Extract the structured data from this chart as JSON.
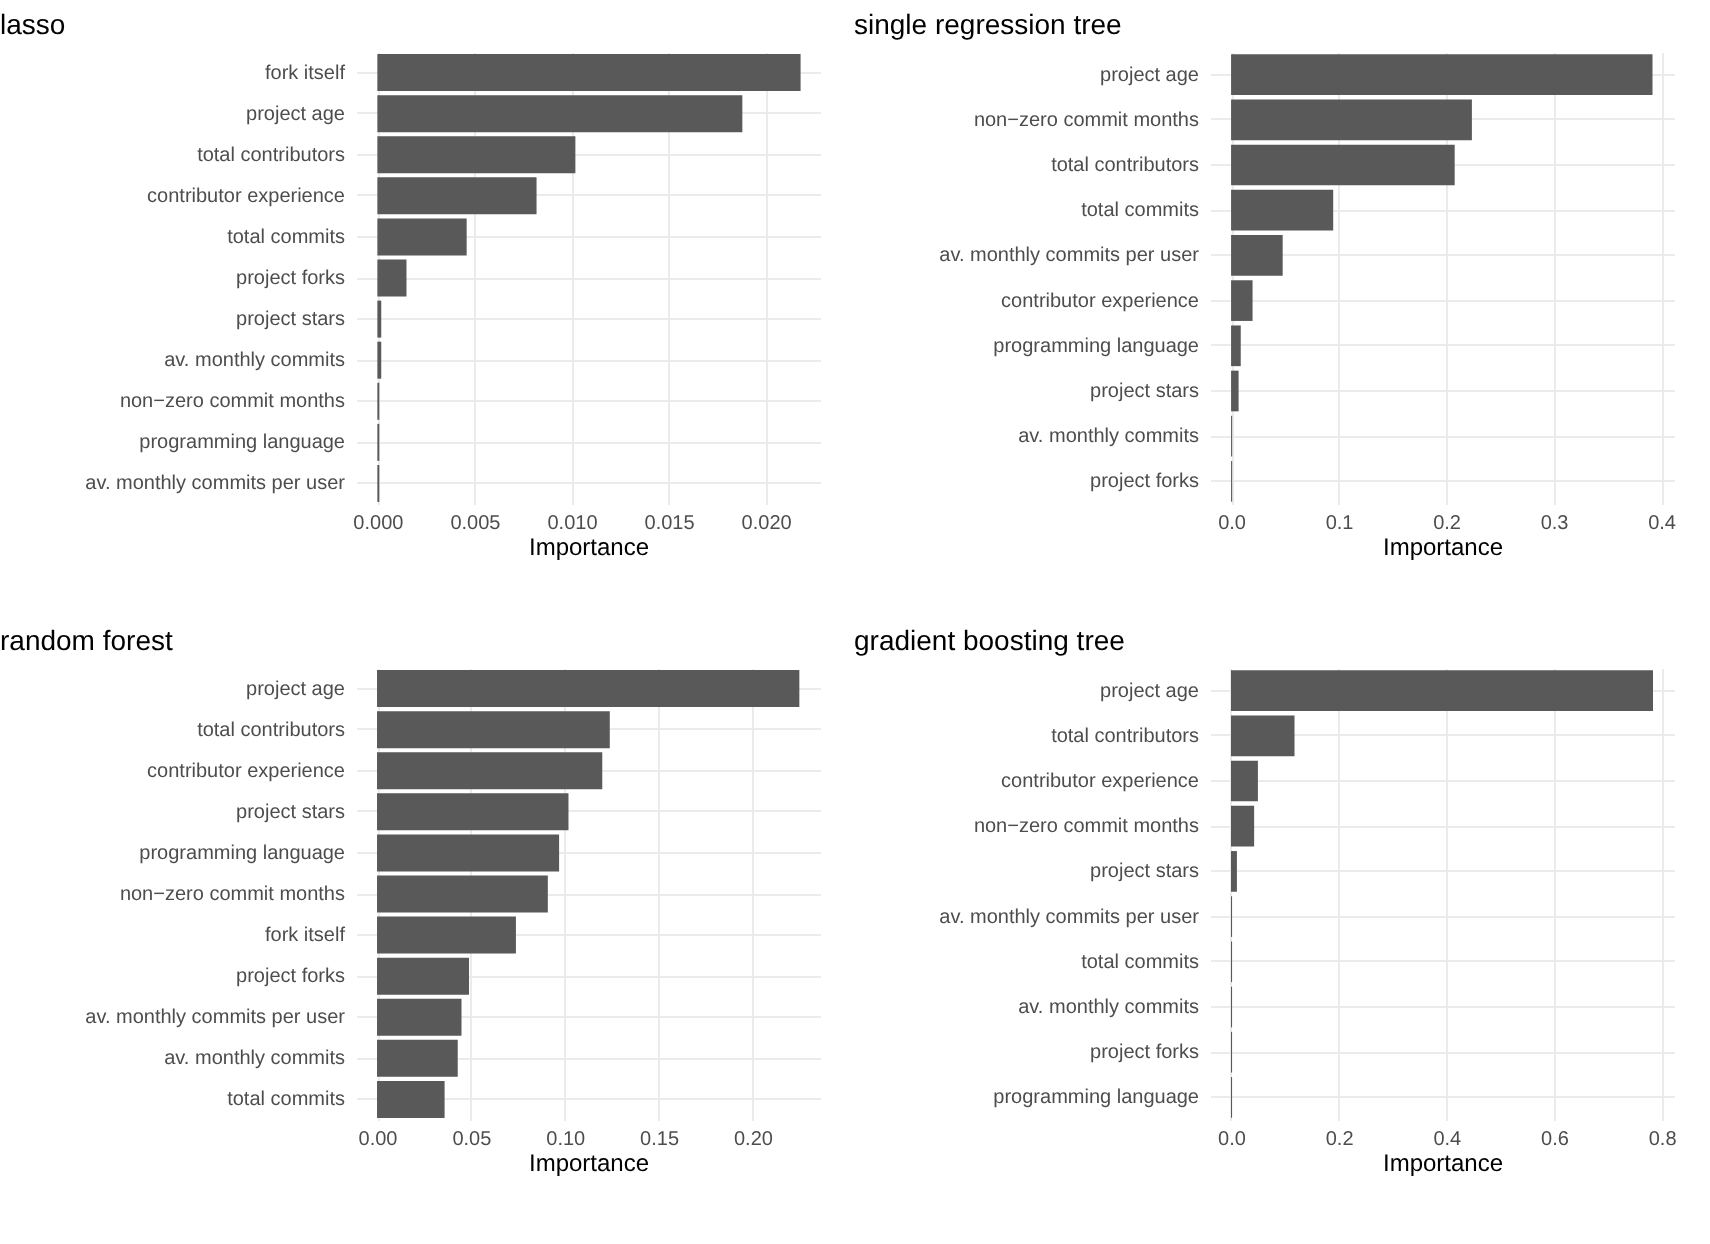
{
  "chart_data": [
    {
      "type": "bar",
      "orientation": "horizontal",
      "title": "lasso",
      "xlabel": "Importance",
      "color": "#595959",
      "grid": true,
      "categories": [
        "fork itself",
        "project age",
        "total contributors",
        "contributor experience",
        "total commits",
        "project forks",
        "project stars",
        "av. monthly commits",
        "non−zero commit months",
        "programming language",
        "av. monthly commits per user"
      ],
      "values": [
        0.0218,
        0.0188,
        0.0102,
        0.0082,
        0.0046,
        0.0015,
        0.0002,
        0.0002,
        0.0001,
        0.0001,
        0.0001
      ],
      "xlim": [
        -0.0011,
        0.0228
      ],
      "xticks": [
        {
          "value": 0,
          "label": "0.000"
        },
        0.005,
        {
          "value": 0.01,
          "label": "0.010"
        },
        0.015,
        {
          "value": 0.02,
          "label": "0.020"
        }
      ]
    },
    {
      "type": "bar",
      "orientation": "horizontal",
      "title": "single regression tree",
      "xlabel": "Importance",
      "color": "#595959",
      "grid": true,
      "categories": [
        "project age",
        "non−zero commit months",
        "total contributors",
        "total commits",
        "av. monthly commits per user",
        "contributor experience",
        "programming language",
        "project stars",
        "av. monthly commits",
        "project forks"
      ],
      "values": [
        0.392,
        0.224,
        0.208,
        0.095,
        0.048,
        0.02,
        0.009,
        0.007,
        0.001,
        0.001
      ],
      "xlim": [
        -0.0196,
        0.412
      ],
      "xticks": [
        {
          "value": 0,
          "label": "0.0"
        },
        0.1,
        0.2,
        0.3,
        0.4
      ]
    },
    {
      "type": "bar",
      "orientation": "horizontal",
      "title": "random forest",
      "xlabel": "Importance",
      "color": "#595959",
      "grid": true,
      "categories": [
        "project age",
        "total contributors",
        "contributor experience",
        "project stars",
        "programming language",
        "non−zero commit months",
        "fork itself",
        "project forks",
        "av. monthly commits per user",
        "av. monthly commits",
        "total commits"
      ],
      "values": [
        0.225,
        0.124,
        0.12,
        0.102,
        0.097,
        0.091,
        0.074,
        0.049,
        0.045,
        0.043,
        0.036
      ],
      "xlim": [
        -0.0112,
        0.236
      ],
      "xticks": [
        {
          "value": 0,
          "label": "0.00"
        },
        0.05,
        {
          "value": 0.1,
          "label": "0.10"
        },
        0.15,
        {
          "value": 0.2,
          "label": "0.20"
        }
      ]
    },
    {
      "type": "bar",
      "orientation": "horizontal",
      "title": "gradient boosting tree",
      "xlabel": "Importance",
      "color": "#595959",
      "grid": true,
      "categories": [
        "project age",
        "total contributors",
        "contributor experience",
        "non−zero commit months",
        "project stars",
        "av. monthly commits per user",
        "total commits",
        "av. monthly commits",
        "project forks",
        "programming language"
      ],
      "values": [
        0.784,
        0.118,
        0.05,
        0.043,
        0.011,
        0.002,
        0.002,
        0.002,
        0.002,
        0.002
      ],
      "xlim": [
        -0.039,
        0.823
      ],
      "xticks": [
        {
          "value": 0,
          "label": "0.0"
        },
        0.2,
        0.4,
        0.6,
        0.8
      ]
    }
  ]
}
